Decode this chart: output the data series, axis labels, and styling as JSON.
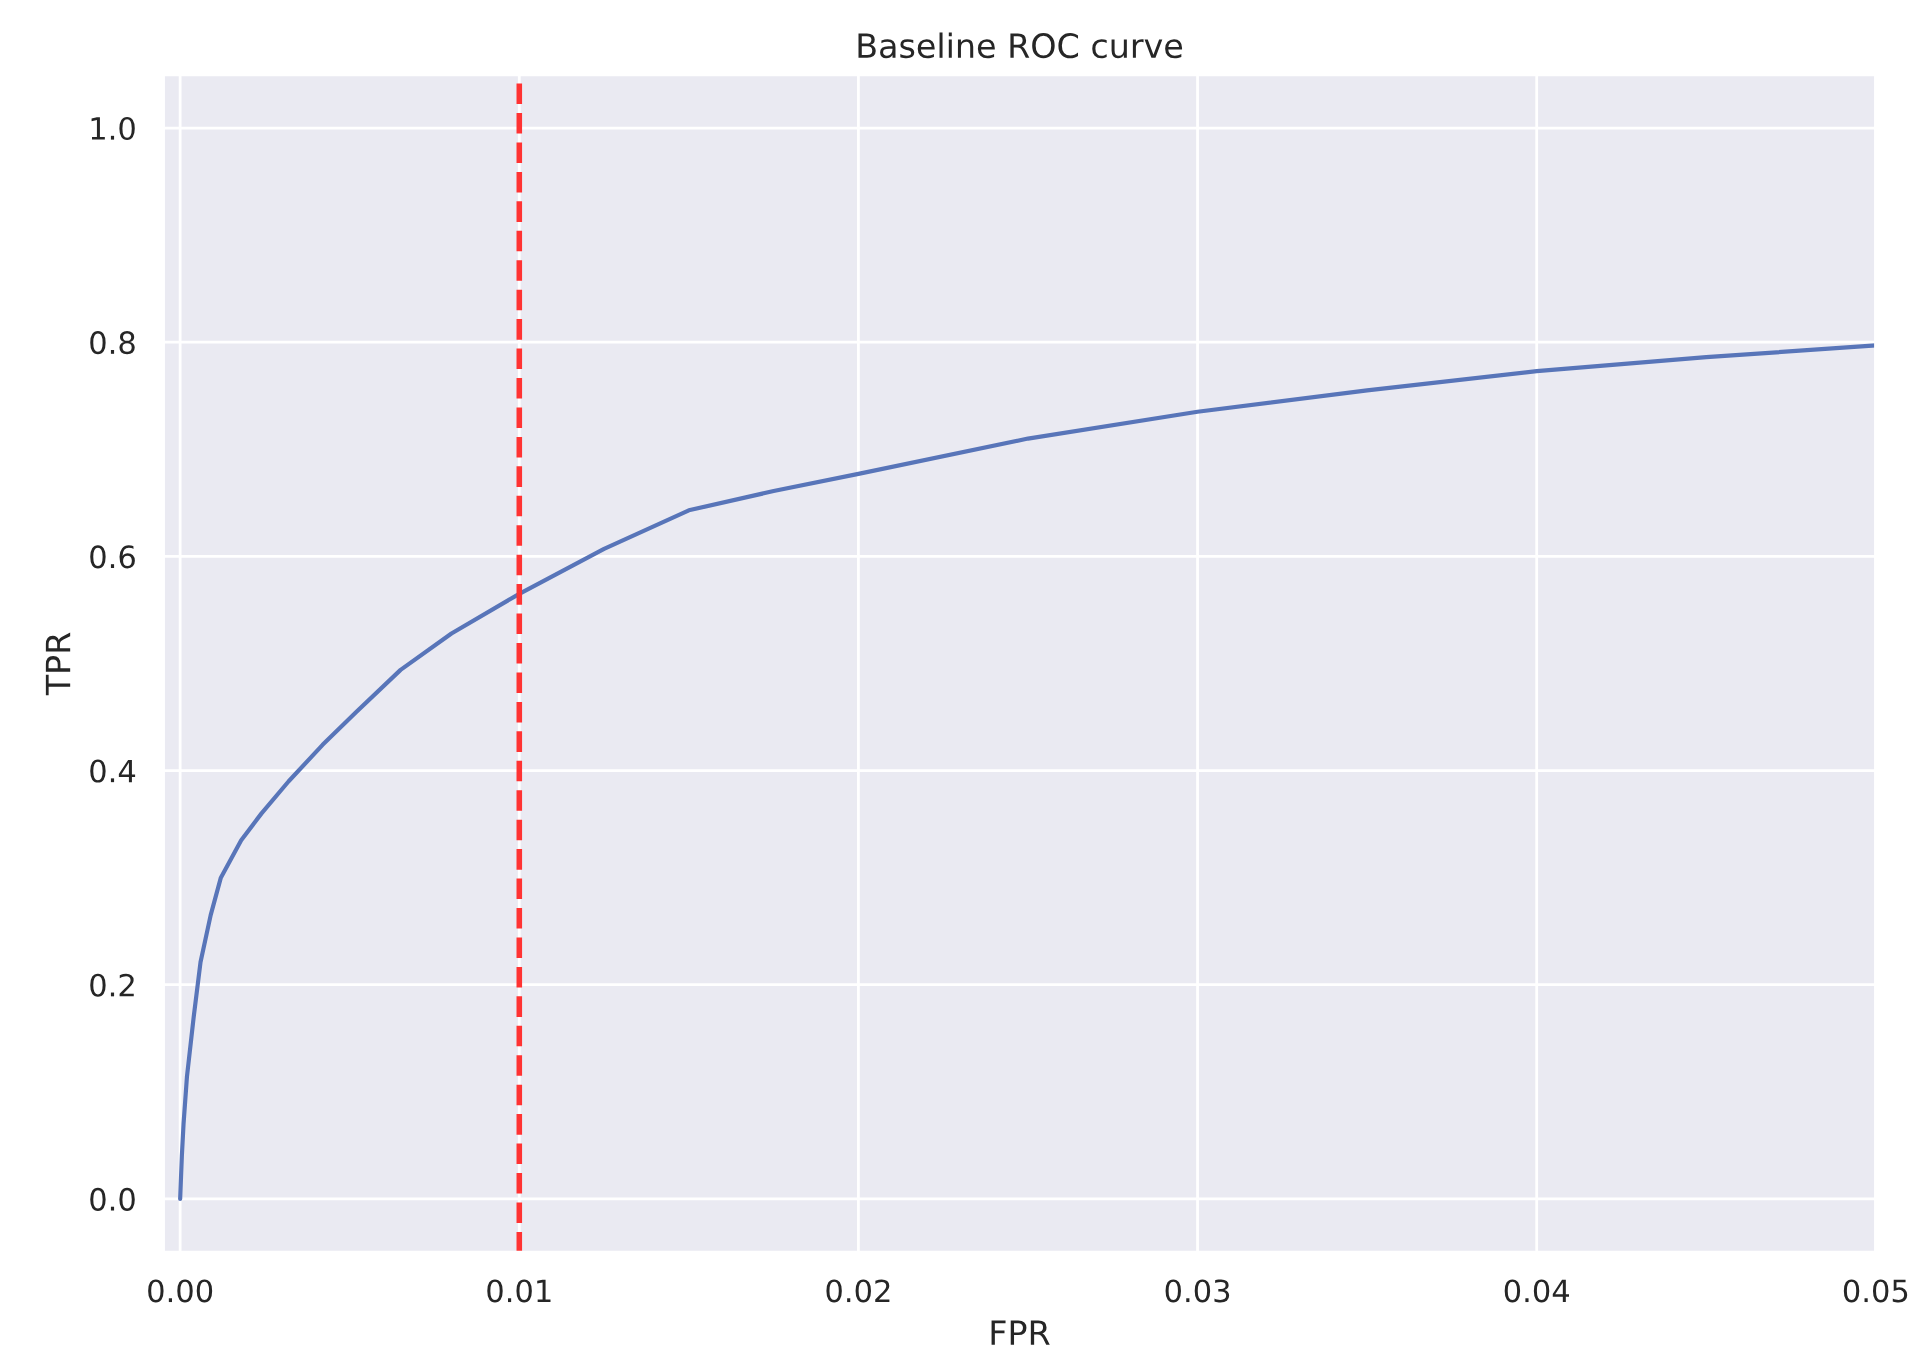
{
  "chart_data": {
    "type": "line",
    "title": "Baseline ROC curve",
    "xlabel": "FPR",
    "ylabel": "TPR",
    "x": [
      0,
      5e-05,
      0.0001,
      0.0002,
      0.0004,
      0.0006,
      0.0009,
      0.0012,
      0.0018,
      0.0024,
      0.0032,
      0.0042,
      0.0052,
      0.0065,
      0.008,
      0.01,
      0.0125,
      0.015,
      0.0175,
      0.02,
      0.025,
      0.03,
      0.035,
      0.04,
      0.045,
      0.05
    ],
    "series": [
      {
        "color": "#5875b9",
        "values": [
          0,
          0.04,
          0.07,
          0.114,
          0.17,
          0.221,
          0.265,
          0.3,
          0.335,
          0.36,
          0.39,
          0.424,
          0.455,
          0.494,
          0.528,
          0.565,
          0.607,
          0.643,
          0.661,
          0.677,
          0.71,
          0.735,
          0.755,
          0.773,
          0.786,
          0.797
        ]
      }
    ],
    "xlim": [
      -0.0005,
      0.05
    ],
    "ylim": [
      -0.05,
      1.05
    ],
    "xticks": [
      {
        "value": 0,
        "label": "0.00"
      },
      0.01,
      0.02,
      0.03,
      0.04,
      0.05
    ],
    "yticks": [
      {
        "value": 0,
        "label": "0.0"
      },
      0.2,
      0.4,
      0.6,
      0.8,
      {
        "value": 1,
        "label": "1.0"
      }
    ],
    "ref_lines": [
      {
        "axis": "x",
        "value": 0.01,
        "color": "#ff3333",
        "line_style": "dashed"
      }
    ],
    "grid": true,
    "line_style": "solid",
    "marker": "none"
  }
}
